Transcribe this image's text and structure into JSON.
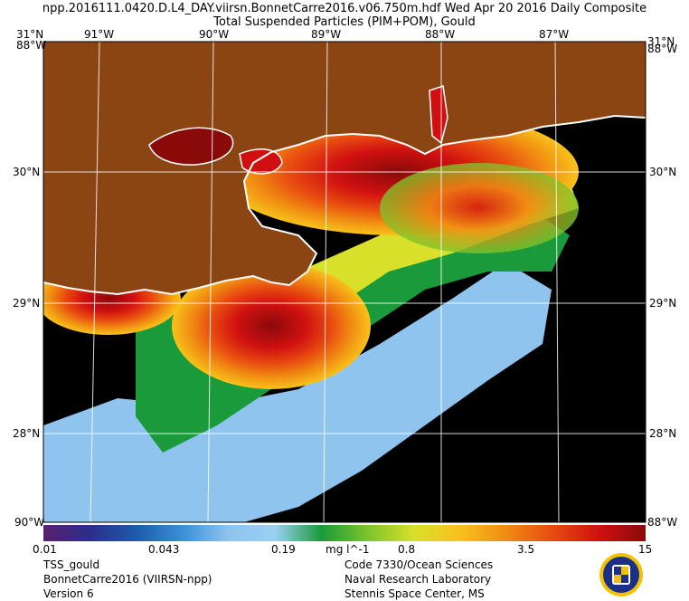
{
  "header": {
    "line1": "npp.2016111.0420.D.L4_DAY.viirsn.BonnetCarre2016.v06.750m.hdf   Wed Apr 20 2016 Daily Composite",
    "line2": "Total Suspended Particles (PIM+POM), Gould"
  },
  "axes": {
    "top_lon": [
      "91°W",
      "90°W",
      "89°W",
      "88°W",
      "87°W"
    ],
    "left_lat": [
      "30°N",
      "29°N",
      "28°N"
    ],
    "right_lat": [
      "30°N",
      "29°N",
      "28°N"
    ],
    "corner_top": "31°N",
    "corner_top_right": "31°N",
    "corner_overlay_top": "88°W",
    "corner_bottom": "90°W",
    "corner_bottom_right": "88°W"
  },
  "colorbar": {
    "ticks": [
      "0.01",
      "0.043",
      "0.19",
      "mg l^-1",
      "0.8",
      "3.5",
      "15"
    ],
    "colors": [
      "#5a1f6e",
      "#2b2e8a",
      "#1f5aa8",
      "#3a8fd6",
      "#8fc4ef",
      "#9ad0f0",
      "#1a9a3a",
      "#7cc42a",
      "#d8e02a",
      "#f8c21a",
      "#f08a12",
      "#e84a10",
      "#d01010",
      "#8a0a0a"
    ]
  },
  "footer": {
    "left": [
      "TSS_gould",
      "BonnetCarre2016 (VIIRSN-npp)",
      "Version 6"
    ],
    "right": [
      "Code 7330/Ocean Sciences",
      "Naval Research Laboratory",
      "Stennis Space Center, MS"
    ]
  },
  "map_colors": {
    "land": "#8b4513",
    "no_data": "#000000",
    "coast": "#ffffff"
  }
}
